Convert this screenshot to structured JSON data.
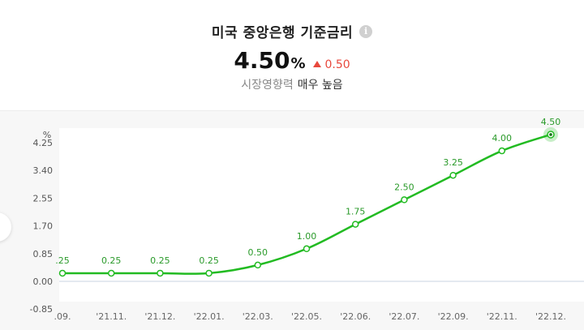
{
  "header": {
    "title": "미국 중앙은행 기준금리",
    "value": "4.50",
    "unit": "%",
    "change": "0.50",
    "influence_label": "시장영향력",
    "influence_value": "매우 높음"
  },
  "colors": {
    "line": "#22bb22",
    "label": "#2a9a2a",
    "change_up": "#e8483c"
  },
  "chart_data": {
    "type": "line",
    "ylabel": "%",
    "ylim": [
      -0.85,
      4.5
    ],
    "yticks": [
      "4.25",
      "3.40",
      "2.55",
      "1.70",
      "0.85",
      "0.00",
      "-0.85"
    ],
    "categories": [
      ".09.",
      "'21.11.",
      "'21.12.",
      "'22.01.",
      "'22.03.",
      "'22.05.",
      "'22.06.",
      "'22.07.",
      "'22.09.",
      "'22.11.",
      "'22.12."
    ],
    "values": [
      0.25,
      0.25,
      0.25,
      0.25,
      0.5,
      1.0,
      1.75,
      2.5,
      3.25,
      4.0,
      4.5
    ],
    "data_labels": [
      ".25",
      "0.25",
      "0.25",
      "0.25",
      "0.50",
      "1.00",
      "1.75",
      "2.50",
      "3.25",
      "4.00",
      "4.50"
    ],
    "grid": false,
    "legend": "none"
  }
}
